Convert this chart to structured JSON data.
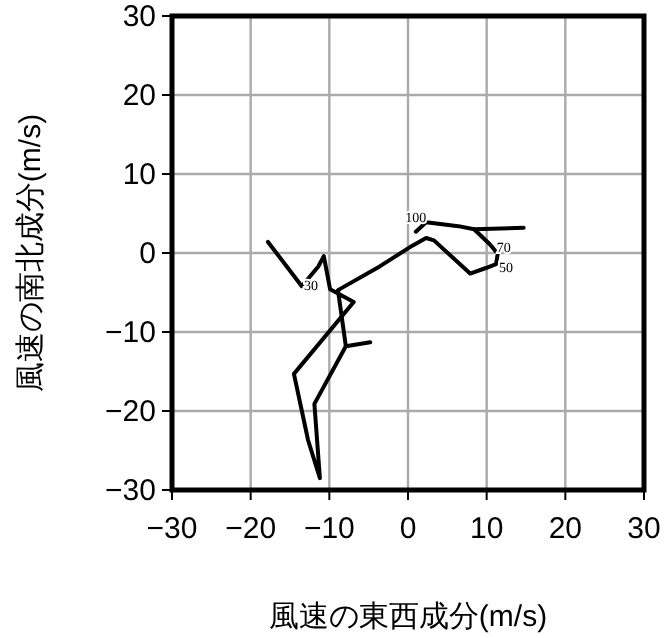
{
  "chart_data": {
    "type": "line",
    "xlabel": "風速の東西成分(m/s)",
    "ylabel": "風速の南北成分(m/s)",
    "xlim": [
      -30,
      30
    ],
    "ylim": [
      -30,
      30
    ],
    "xticks": [
      -30,
      -20,
      -10,
      0,
      10,
      20,
      30
    ],
    "yticks": [
      -30,
      -20,
      -10,
      0,
      10,
      20,
      30
    ],
    "grid": true,
    "series": [
      {
        "color": "#000000",
        "x": [
          -17.8,
          -13.5,
          -11.4,
          -10.7,
          -9.9,
          -6.9,
          -14.5,
          -12.7,
          -11.2,
          -11.9,
          -7.9,
          -4.8
        ],
        "values": [
          1.4,
          -4.2,
          -1.7,
          -0.4,
          -4.6,
          -6.2,
          -15.3,
          -23.7,
          -28.5,
          -19.1,
          -11.8,
          -11.3
        ]
      },
      {
        "color": "#000000",
        "x": [
          -7.9,
          -8.9,
          -3.6,
          0.5,
          2.3,
          3.3,
          7.9,
          9.9,
          11.2,
          11.4,
          10.4,
          8.4,
          6.4,
          2.3,
          1.0
        ],
        "values": [
          -11.8,
          -4.7,
          -1.7,
          0.9,
          1.9,
          1.6,
          -2.6,
          -1.9,
          -1.4,
          -0.1,
          1.1,
          3.0,
          3.4,
          3.9,
          2.7
        ]
      },
      {
        "color": "#000000",
        "x": [
          8.4,
          14.7
        ],
        "values": [
          3.0,
          3.2
        ]
      }
    ],
    "annotations": [
      {
        "text": "100",
        "x": 1.0,
        "y": 2.7
      },
      {
        "text": "70",
        "x": 10.9,
        "y": 1.2
      },
      {
        "text": "50",
        "x": 11.2,
        "y": -1.4
      },
      {
        "text": "30",
        "x": -13.6,
        "y": -3.7
      }
    ]
  }
}
